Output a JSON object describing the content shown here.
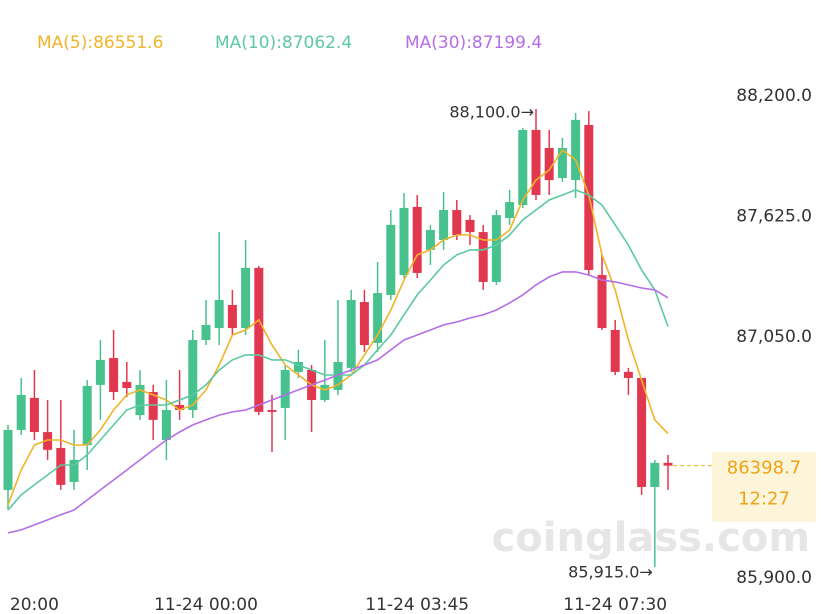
{
  "chart_data": {
    "type": "candlestick",
    "categories": [
      null,
      null,
      "20:00",
      null,
      null,
      null,
      null,
      null,
      null,
      null,
      null,
      null,
      null,
      null,
      null,
      "11-24 00:00",
      null,
      null,
      null,
      null,
      null,
      null,
      null,
      null,
      null,
      null,
      null,
      null,
      null,
      null,
      null,
      "11-24 03:45",
      null,
      null,
      null,
      null,
      null,
      null,
      null,
      null,
      null,
      null,
      null,
      null,
      null,
      null,
      "11-24 07:30",
      null,
      null,
      null,
      null
    ],
    "open": [
      86283,
      86569,
      86722,
      86559,
      86483,
      86321,
      86497,
      86784,
      86912,
      86798,
      86640,
      86750,
      86521,
      86688,
      86664,
      86998,
      87055,
      87165,
      87055,
      87342,
      86664,
      86674,
      86846,
      86855,
      86712,
      86760,
      86865,
      87179,
      86984,
      87213,
      87308,
      87633,
      87428,
      87475,
      87618,
      87571,
      87513,
      87275,
      87580,
      87642,
      88000,
      87914,
      87771,
      87761,
      88024,
      87308,
      87046,
      86846,
      86817,
      86297,
      86412
    ],
    "high": [
      86593,
      86817,
      86855,
      86712,
      86712,
      86569,
      86807,
      86998,
      87046,
      86893,
      86855,
      86784,
      86807,
      86855,
      87046,
      87189,
      87513,
      87237,
      87475,
      87351,
      86736,
      86879,
      86951,
      86879,
      86998,
      87189,
      87237,
      87237,
      87370,
      87618,
      87699,
      87690,
      87547,
      87704,
      87666,
      87594,
      87547,
      87618,
      87714,
      88009,
      88100,
      88000,
      87962,
      88081,
      88090,
      87404,
      87094,
      86865,
      86817,
      86426,
      86450
    ],
    "low": [
      86187,
      86545,
      86521,
      86426,
      86283,
      86283,
      86378,
      86617,
      86712,
      86726,
      86617,
      86521,
      86426,
      86617,
      86626,
      86974,
      86974,
      87022,
      87022,
      86640,
      86464,
      86521,
      86817,
      86559,
      86702,
      86736,
      86846,
      86941,
      86941,
      87189,
      87294,
      87294,
      87356,
      87428,
      87475,
      87451,
      87237,
      87261,
      87547,
      87628,
      87666,
      87690,
      87752,
      87676,
      87308,
      87046,
      86831,
      86736,
      86259,
      85915,
      86283
    ],
    "close": [
      86569,
      86736,
      86559,
      86474,
      86307,
      86426,
      86779,
      86903,
      86750,
      86769,
      86784,
      86617,
      86664,
      86664,
      86998,
      87070,
      87189,
      87055,
      87342,
      86655,
      86655,
      86855,
      86893,
      86712,
      86784,
      86893,
      87189,
      86974,
      87222,
      87547,
      87628,
      87318,
      87523,
      87618,
      87499,
      87513,
      87275,
      87594,
      87656,
      88000,
      87690,
      87761,
      87914,
      88048,
      87332,
      87055,
      86846,
      86817,
      86297,
      86412,
      86398.7
    ],
    "up_color": "#47c18d",
    "down_color": "#e2384f",
    "series": [
      {
        "name": "MA(5):86551.6",
        "color": "#f0b429",
        "values": [
          86211,
          86378,
          86497,
          86521,
          86521,
          86497,
          86497,
          86569,
          86664,
          86736,
          86760,
          86736,
          86712,
          86664,
          86688,
          86760,
          86879,
          87022,
          87046,
          87094,
          86974,
          86879,
          86831,
          86784,
          86760,
          86784,
          86831,
          86927,
          87022,
          87141,
          87284,
          87404,
          87428,
          87475,
          87499,
          87499,
          87475,
          87475,
          87523,
          87666,
          87761,
          87809,
          87904,
          87857,
          87690,
          87404,
          87237,
          86998,
          86807,
          86617,
          86551.6
        ]
      },
      {
        "name": "MA(10):87062.4",
        "color": "#5cc9a1",
        "values": [
          86187,
          86259,
          86307,
          86354,
          86402,
          86402,
          86450,
          86521,
          86593,
          86664,
          86688,
          86688,
          86688,
          86712,
          86736,
          86784,
          86855,
          86903,
          86927,
          86927,
          86903,
          86903,
          86879,
          86855,
          86831,
          86831,
          86831,
          86879,
          86951,
          87022,
          87118,
          87213,
          87284,
          87356,
          87404,
          87428,
          87428,
          87451,
          87499,
          87571,
          87618,
          87666,
          87690,
          87714,
          87690,
          87642,
          87547,
          87451,
          87332,
          87237,
          87062.4
        ]
      },
      {
        "name": "MA(30):87199.4",
        "color": "#b46ee6",
        "values": [
          86078,
          86092,
          86116,
          86140,
          86164,
          86187,
          86235,
          86283,
          86330,
          86378,
          86426,
          86474,
          86521,
          86559,
          86593,
          86617,
          86640,
          86655,
          86664,
          86688,
          86712,
          86736,
          86760,
          86784,
          86807,
          86831,
          86855,
          86879,
          86903,
          86951,
          86998,
          87022,
          87046,
          87070,
          87084,
          87103,
          87118,
          87141,
          87175,
          87213,
          87261,
          87299,
          87323,
          87323,
          87308,
          87284,
          87275,
          87261,
          87246,
          87237,
          87199.4
        ]
      }
    ],
    "ylim": [
      85691,
      88620
    ],
    "yticks": [
      {
        "value": 88200,
        "label": "88,200.0"
      },
      {
        "value": 87625,
        "label": "87,625.0"
      },
      {
        "value": 87050,
        "label": "87,050.0"
      },
      {
        "value": 85900,
        "label": "85,900.0"
      }
    ],
    "high_label": "88,100.0→",
    "low_label": "85,915.0→",
    "countdown": "12:27",
    "watermark": "coinglass.com"
  }
}
